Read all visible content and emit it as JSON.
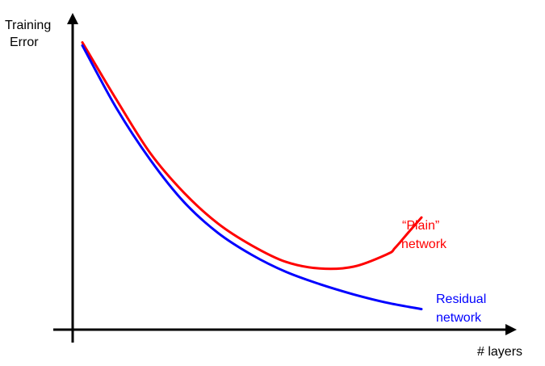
{
  "chart_data": {
    "type": "line",
    "title": "",
    "ylabel": [
      "Training",
      "Error"
    ],
    "xlabel": "# layers",
    "x_ticks": false,
    "y_ticks": false,
    "grid": false,
    "series": [
      {
        "name": [
          "“Plain”",
          "network"
        ],
        "color": "#ff0000",
        "points": [
          [
            0.0,
            0.953
          ],
          [
            0.1,
            0.764
          ],
          [
            0.2,
            0.586
          ],
          [
            0.3,
            0.454
          ],
          [
            0.4,
            0.352
          ],
          [
            0.5,
            0.279
          ],
          [
            0.6,
            0.225
          ],
          [
            0.7,
            0.203
          ],
          [
            0.8,
            0.209
          ],
          [
            0.9,
            0.251
          ],
          [
            0.922,
            0.271
          ],
          [
            0.958,
            0.318
          ],
          [
            1.0,
            0.372
          ]
        ]
      },
      {
        "name": [
          "Residual",
          "network"
        ],
        "color": "#0000ff",
        "points": [
          [
            0.0,
            0.943
          ],
          [
            0.1,
            0.736
          ],
          [
            0.2,
            0.564
          ],
          [
            0.3,
            0.423
          ],
          [
            0.4,
            0.321
          ],
          [
            0.5,
            0.248
          ],
          [
            0.6,
            0.192
          ],
          [
            0.7,
            0.151
          ],
          [
            0.8,
            0.117
          ],
          [
            0.9,
            0.089
          ],
          [
            1.0,
            0.068
          ]
        ]
      }
    ]
  }
}
